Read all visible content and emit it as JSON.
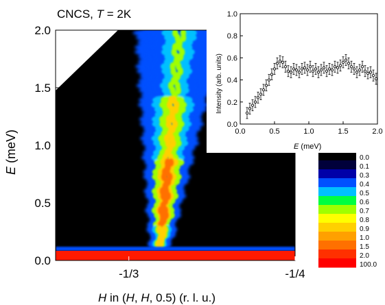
{
  "chart_data": [
    {
      "type": "heatmap",
      "title_prefix": "CNCS, ",
      "title_var": "T",
      "title_suffix": " = 2K",
      "xlabel_var": "H",
      "xlabel_text": " in (",
      "xlabel_var2": "H",
      "xlabel_sep": ", ",
      "xlabel_var3": "H",
      "xlabel_tail": ", 0.5) (r. l. u.)",
      "ylabel_var": "E",
      "ylabel_unit": " (meV)",
      "xlim": [
        -0.37,
        -0.25
      ],
      "ylim": [
        0.0,
        2.0
      ],
      "x_ticks": [
        {
          "value": -0.3333,
          "label": "-1/3"
        },
        {
          "value": -0.25,
          "label": "-1/4"
        }
      ],
      "y_ticks": [
        {
          "value": 0.0,
          "label": "0.0"
        },
        {
          "value": 0.5,
          "label": "0.5"
        },
        {
          "value": 1.0,
          "label": "1.0"
        },
        {
          "value": 1.5,
          "label": "1.5"
        },
        {
          "value": 2.0,
          "label": "2.0"
        }
      ],
      "colorbar": {
        "labels": [
          "0.0",
          "0.1",
          "0.3",
          "0.4",
          "0.5",
          "0.6",
          "0.7",
          "0.8",
          "0.9",
          "1.0",
          "1.5",
          "2.0",
          "100.0"
        ],
        "colors": [
          "#000000",
          "#00003a",
          "#0000a8",
          "#0050ff",
          "#00c0ff",
          "#00ff40",
          "#a0ff00",
          "#ffff00",
          "#ffd000",
          "#ffa000",
          "#ff7000",
          "#ff3000",
          "#ff0000"
        ]
      }
    },
    {
      "type": "scatter",
      "xlabel_var": "E",
      "xlabel_unit": " (meV)",
      "ylabel": "Intensity (arb. units)",
      "xlim": [
        0.0,
        2.0
      ],
      "ylim": [
        0.0,
        1.0
      ],
      "x_ticks": [
        "0.0",
        "0.5",
        "1.0",
        "1.5",
        "2.0"
      ],
      "y_ticks": [
        "0.0",
        "0.2",
        "0.4",
        "0.6",
        "0.8",
        "1.0"
      ],
      "x": [
        0.1,
        0.14,
        0.18,
        0.22,
        0.26,
        0.3,
        0.34,
        0.38,
        0.42,
        0.46,
        0.5,
        0.54,
        0.58,
        0.62,
        0.66,
        0.7,
        0.74,
        0.78,
        0.82,
        0.86,
        0.9,
        0.94,
        0.98,
        1.02,
        1.06,
        1.1,
        1.14,
        1.18,
        1.22,
        1.26,
        1.3,
        1.34,
        1.38,
        1.42,
        1.46,
        1.5,
        1.54,
        1.58,
        1.62,
        1.66,
        1.7,
        1.74,
        1.78,
        1.82,
        1.86,
        1.9,
        1.94,
        1.98
      ],
      "y": [
        0.1,
        0.14,
        0.17,
        0.2,
        0.24,
        0.27,
        0.31,
        0.35,
        0.4,
        0.45,
        0.5,
        0.55,
        0.57,
        0.56,
        0.52,
        0.48,
        0.47,
        0.5,
        0.49,
        0.47,
        0.5,
        0.51,
        0.49,
        0.52,
        0.48,
        0.5,
        0.47,
        0.49,
        0.51,
        0.48,
        0.5,
        0.49,
        0.52,
        0.51,
        0.53,
        0.56,
        0.58,
        0.55,
        0.52,
        0.5,
        0.47,
        0.49,
        0.52,
        0.48,
        0.46,
        0.47,
        0.44,
        0.41
      ],
      "yerr": 0.05
    }
  ]
}
